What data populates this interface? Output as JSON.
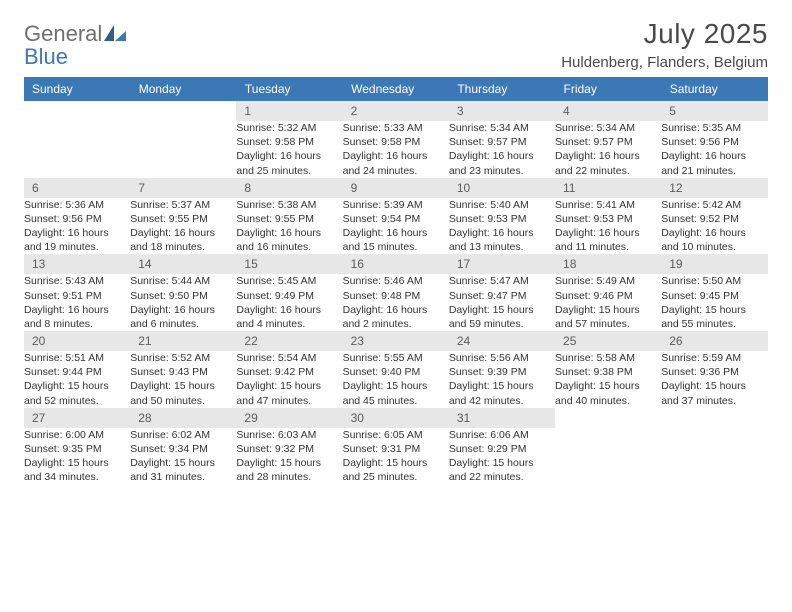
{
  "logo": {
    "line1": "General",
    "line2": "Blue"
  },
  "title": "July 2025",
  "location": "Huldenberg, Flanders, Belgium",
  "columns": [
    "Sunday",
    "Monday",
    "Tuesday",
    "Wednesday",
    "Thursday",
    "Friday",
    "Saturday"
  ],
  "colors": {
    "header_bg": "#3b78b5",
    "header_fg": "#ffffff",
    "daynum_bg": "#e7e7e7",
    "text": "#333333",
    "week_border": "#2f5d8c",
    "logo_gray": "#6f6f6f",
    "logo_blue": "#3b78b5"
  },
  "calendar": {
    "type": "table",
    "first_weekday_index": 2,
    "weeks": [
      [
        null,
        null,
        {
          "n": 1,
          "sr": "5:32 AM",
          "ss": "9:58 PM",
          "dh": 16,
          "dm": 25
        },
        {
          "n": 2,
          "sr": "5:33 AM",
          "ss": "9:58 PM",
          "dh": 16,
          "dm": 24
        },
        {
          "n": 3,
          "sr": "5:34 AM",
          "ss": "9:57 PM",
          "dh": 16,
          "dm": 23
        },
        {
          "n": 4,
          "sr": "5:34 AM",
          "ss": "9:57 PM",
          "dh": 16,
          "dm": 22
        },
        {
          "n": 5,
          "sr": "5:35 AM",
          "ss": "9:56 PM",
          "dh": 16,
          "dm": 21
        }
      ],
      [
        {
          "n": 6,
          "sr": "5:36 AM",
          "ss": "9:56 PM",
          "dh": 16,
          "dm": 19
        },
        {
          "n": 7,
          "sr": "5:37 AM",
          "ss": "9:55 PM",
          "dh": 16,
          "dm": 18
        },
        {
          "n": 8,
          "sr": "5:38 AM",
          "ss": "9:55 PM",
          "dh": 16,
          "dm": 16
        },
        {
          "n": 9,
          "sr": "5:39 AM",
          "ss": "9:54 PM",
          "dh": 16,
          "dm": 15
        },
        {
          "n": 10,
          "sr": "5:40 AM",
          "ss": "9:53 PM",
          "dh": 16,
          "dm": 13
        },
        {
          "n": 11,
          "sr": "5:41 AM",
          "ss": "9:53 PM",
          "dh": 16,
          "dm": 11
        },
        {
          "n": 12,
          "sr": "5:42 AM",
          "ss": "9:52 PM",
          "dh": 16,
          "dm": 10
        }
      ],
      [
        {
          "n": 13,
          "sr": "5:43 AM",
          "ss": "9:51 PM",
          "dh": 16,
          "dm": 8
        },
        {
          "n": 14,
          "sr": "5:44 AM",
          "ss": "9:50 PM",
          "dh": 16,
          "dm": 6
        },
        {
          "n": 15,
          "sr": "5:45 AM",
          "ss": "9:49 PM",
          "dh": 16,
          "dm": 4
        },
        {
          "n": 16,
          "sr": "5:46 AM",
          "ss": "9:48 PM",
          "dh": 16,
          "dm": 2
        },
        {
          "n": 17,
          "sr": "5:47 AM",
          "ss": "9:47 PM",
          "dh": 15,
          "dm": 59
        },
        {
          "n": 18,
          "sr": "5:49 AM",
          "ss": "9:46 PM",
          "dh": 15,
          "dm": 57
        },
        {
          "n": 19,
          "sr": "5:50 AM",
          "ss": "9:45 PM",
          "dh": 15,
          "dm": 55
        }
      ],
      [
        {
          "n": 20,
          "sr": "5:51 AM",
          "ss": "9:44 PM",
          "dh": 15,
          "dm": 52
        },
        {
          "n": 21,
          "sr": "5:52 AM",
          "ss": "9:43 PM",
          "dh": 15,
          "dm": 50
        },
        {
          "n": 22,
          "sr": "5:54 AM",
          "ss": "9:42 PM",
          "dh": 15,
          "dm": 47
        },
        {
          "n": 23,
          "sr": "5:55 AM",
          "ss": "9:40 PM",
          "dh": 15,
          "dm": 45
        },
        {
          "n": 24,
          "sr": "5:56 AM",
          "ss": "9:39 PM",
          "dh": 15,
          "dm": 42
        },
        {
          "n": 25,
          "sr": "5:58 AM",
          "ss": "9:38 PM",
          "dh": 15,
          "dm": 40
        },
        {
          "n": 26,
          "sr": "5:59 AM",
          "ss": "9:36 PM",
          "dh": 15,
          "dm": 37
        }
      ],
      [
        {
          "n": 27,
          "sr": "6:00 AM",
          "ss": "9:35 PM",
          "dh": 15,
          "dm": 34
        },
        {
          "n": 28,
          "sr": "6:02 AM",
          "ss": "9:34 PM",
          "dh": 15,
          "dm": 31
        },
        {
          "n": 29,
          "sr": "6:03 AM",
          "ss": "9:32 PM",
          "dh": 15,
          "dm": 28
        },
        {
          "n": 30,
          "sr": "6:05 AM",
          "ss": "9:31 PM",
          "dh": 15,
          "dm": 25
        },
        {
          "n": 31,
          "sr": "6:06 AM",
          "ss": "9:29 PM",
          "dh": 15,
          "dm": 22
        },
        null,
        null
      ]
    ]
  },
  "labels": {
    "sunrise": "Sunrise:",
    "sunset": "Sunset:",
    "daylight": "Daylight:",
    "hours": "hours",
    "and": "and",
    "minutes": "minutes."
  }
}
